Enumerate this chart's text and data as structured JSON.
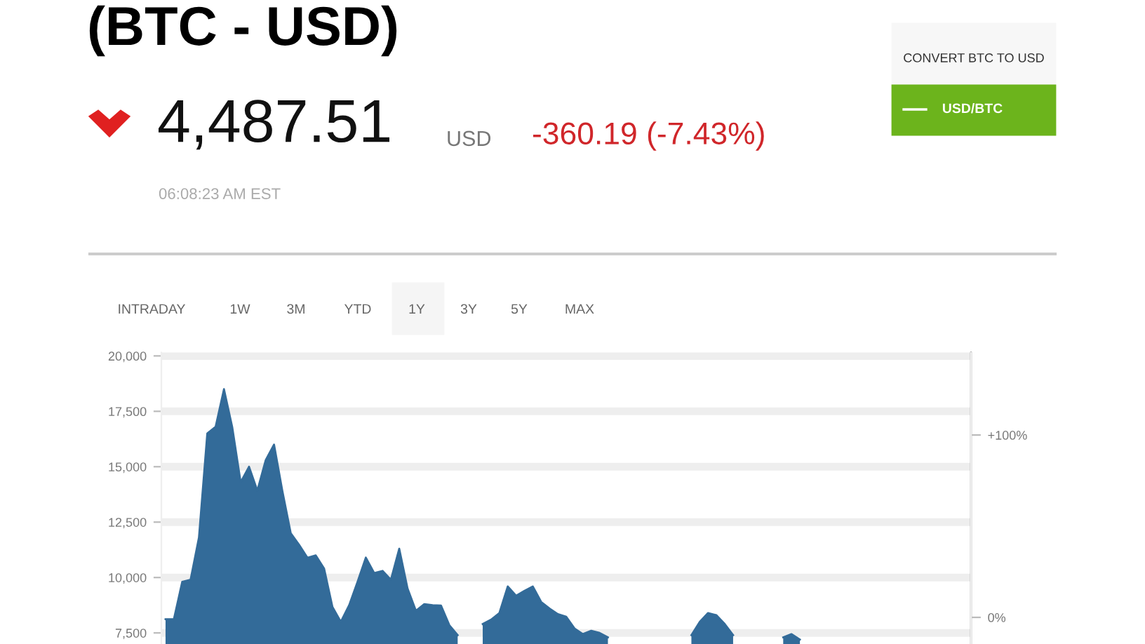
{
  "chart_data": {
    "type": "area",
    "title": "(BTC - USD)",
    "annotations": [
      "4,487.51",
      "USD",
      "-360.19 (-7.43%)",
      "06:08:23 AM EST",
      "CONVERT BTC TO USD",
      "USD/BTC",
      "INTRADAY",
      "1W",
      "3M",
      "YTD",
      "1Y",
      "3Y",
      "5Y",
      "MAX"
    ],
    "categories": [
      null,
      null,
      null,
      null,
      null,
      null,
      null,
      null,
      null,
      null,
      null,
      null,
      null,
      null,
      null,
      null,
      null,
      null,
      null,
      null,
      null,
      null,
      null,
      null,
      null,
      null,
      null,
      null,
      null,
      null,
      null,
      null,
      null,
      null,
      null,
      null,
      null,
      null,
      null,
      null,
      null,
      null,
      null,
      null,
      null,
      null,
      null,
      null,
      null,
      null,
      null,
      null,
      null,
      null,
      null,
      null,
      null,
      null,
      null,
      null,
      null,
      null,
      null,
      null,
      null,
      null,
      null,
      null,
      null,
      null,
      null,
      null,
      null,
      null,
      null,
      null,
      null,
      null,
      null,
      null,
      null,
      null,
      null,
      null,
      null,
      null,
      null,
      null,
      null,
      null,
      null,
      null,
      null,
      null,
      null,
      null,
      null
    ],
    "series": [
      {
        "color": "#336b99",
        "values": [
          8120,
          8120,
          9810,
          9900,
          11800,
          16500,
          16800,
          18500,
          16770,
          14300,
          15000,
          13920,
          15300,
          16000,
          13900,
          12000,
          11480,
          10890,
          11000,
          10400,
          8670,
          8000,
          8750,
          9800,
          10900,
          10200,
          10300,
          9900,
          11300,
          9500,
          8500,
          8800,
          8750,
          8740,
          7850,
          7400,
          null,
          null,
          7900,
          8100,
          8400,
          9600,
          9180,
          9400,
          9600,
          8900,
          8600,
          8350,
          8230,
          7700,
          7450,
          7600,
          7500,
          7300,
          null,
          null,
          null,
          null,
          null,
          null,
          null,
          null,
          null,
          7400,
          8000,
          8400,
          8300,
          7900,
          7400,
          null,
          null,
          null,
          null,
          null,
          7300,
          7450,
          7200,
          null,
          null,
          null,
          null,
          null,
          null,
          null,
          null,
          null,
          null,
          null,
          null,
          null,
          null,
          null,
          null,
          null,
          null,
          null,
          null
        ]
      }
    ],
    "ylim": [
      7000,
      20150
    ],
    "yticks": [
      {
        "value": 7500,
        "label": "7,500"
      },
      {
        "value": 10000,
        "label": "10,000"
      },
      {
        "value": 12500,
        "label": "12,500"
      },
      {
        "value": 15000,
        "label": "15,000"
      },
      {
        "value": 17500,
        "label": "17,500"
      },
      {
        "value": 20000,
        "label": "20,000"
      }
    ],
    "y2lim": [
      -14.6,
      145.2
    ],
    "y2ticks": [
      {
        "value": 0,
        "label": "0%"
      },
      {
        "value": 100,
        "label": "+100%"
      }
    ],
    "grid": "y",
    "legend": false
  }
}
